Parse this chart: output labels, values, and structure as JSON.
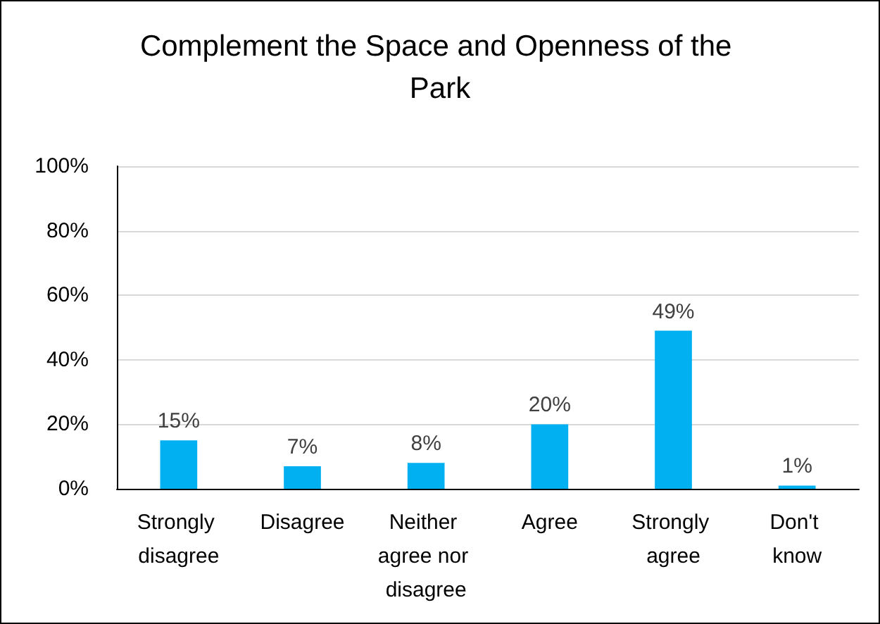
{
  "chart_data": {
    "type": "bar",
    "title": "Complement the Space and Openness of the Park",
    "categories": [
      "Strongly disagree",
      "Disagree",
      "Neither agree nor disagree",
      "Agree",
      "Strongly agree",
      "Don't know"
    ],
    "values": [
      15,
      7,
      8,
      20,
      49,
      1
    ],
    "color": "#00b0f0",
    "value_labels": [
      "15%",
      "7%",
      "8%",
      "20%",
      "49%",
      "1%"
    ],
    "ylim": [
      0,
      100
    ],
    "yticks": [
      {
        "value": 0,
        "label": "0%"
      },
      {
        "value": 20,
        "label": "20%"
      },
      {
        "value": 40,
        "label": "40%"
      },
      {
        "value": 60,
        "label": "60%"
      },
      {
        "value": 80,
        "label": "80%"
      },
      {
        "value": 100,
        "label": "100%"
      }
    ],
    "grid": "y"
  }
}
